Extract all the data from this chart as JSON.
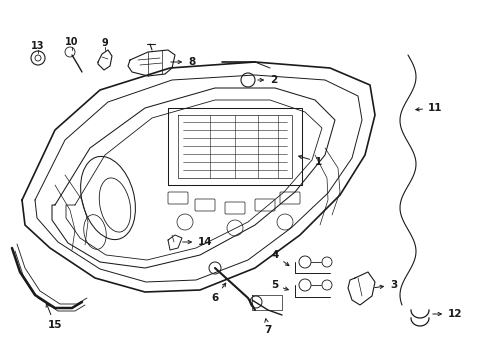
{
  "bg_color": "#ffffff",
  "line_color": "#1a1a1a",
  "fig_w": 4.89,
  "fig_h": 3.6,
  "dpi": 100
}
